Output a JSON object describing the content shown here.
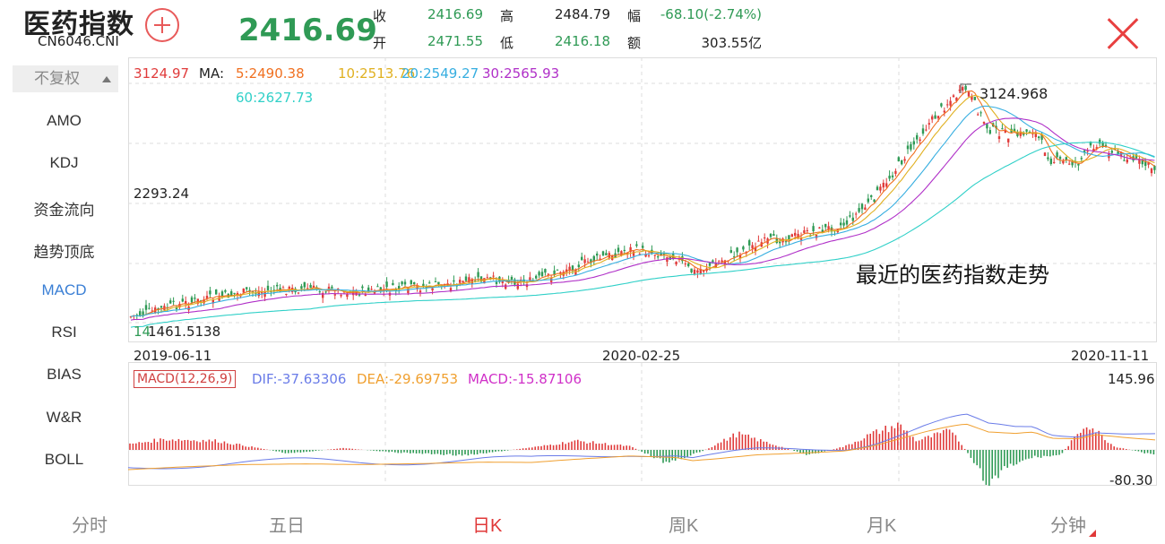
{
  "header": {
    "title": "医药指数",
    "code": "CN6046.CNI",
    "price": "2416.69",
    "quote": {
      "close_label": "收",
      "close_value": "2416.69",
      "high_label": "高",
      "high_value": "2484.79",
      "range_label": "幅",
      "range_value": "-68.10(-2.74%)",
      "open_label": "开",
      "open_value": "2471.55",
      "low_label": "低",
      "low_value": "2416.18",
      "amount_label": "额",
      "amount_value": "303.55亿"
    }
  },
  "sidebar": {
    "adjust_label": "不复权",
    "items": [
      "AMO",
      "KDJ",
      "资金流向",
      "趋势顶底",
      "MACD",
      "RSI",
      "BIAS",
      "W&R",
      "BOLL"
    ],
    "active_index": 4
  },
  "main_chart": {
    "high_legend": "3124.97",
    "ma_label": "MA:",
    "ma5": "5:2490.38",
    "ma10": "10:2513.76",
    "ma20": "20:2549.27",
    "ma30": "30:2565.93",
    "ma60": "60:2627.73",
    "mid_axis": "2293.24",
    "low_axis": "1461.5138",
    "low_axis_overlap": "14",
    "peak_label": "3124.968",
    "annotation": "最近的医药指数走势",
    "dates": [
      "2019-06-11",
      "2020-02-25",
      "2020-11-11"
    ]
  },
  "macd_chart": {
    "tag": "MACD(12,26,9)",
    "dif": "DIF:-37.63306",
    "dea": "DEA:-29.69753",
    "macd": "MACD:-15.87106",
    "top": "145.96",
    "bottom": "-80.30"
  },
  "colors": {
    "up": "#e03b3b",
    "down": "#2f9a55",
    "ma5": "#f07020",
    "ma10": "#e0b020",
    "ma20": "#36aee0",
    "ma30": "#b030c8",
    "ma60": "#30d0c8",
    "dif": "#6a7ce8",
    "dea": "#f0a030",
    "active": "#3a7fd5"
  },
  "tabs": [
    "分时",
    "五日",
    "日K",
    "周K",
    "月K",
    "分钟"
  ],
  "active_tab": 2
}
